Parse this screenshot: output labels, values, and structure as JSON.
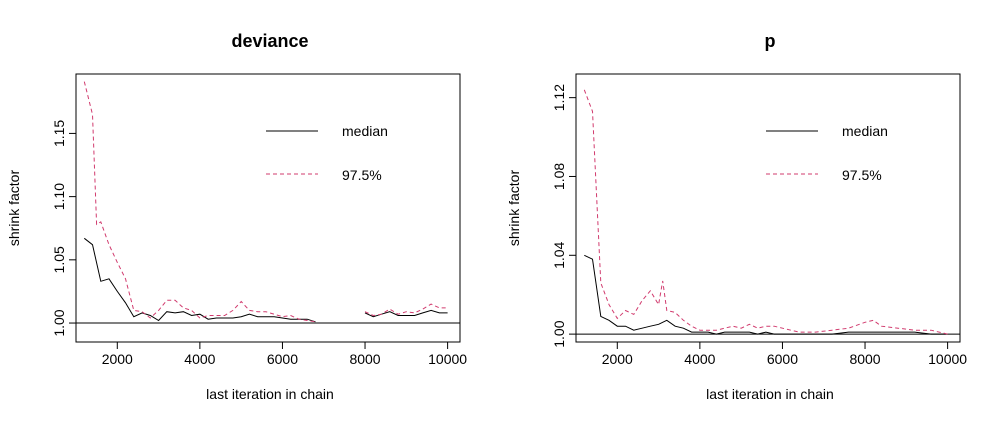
{
  "chart_data": [
    {
      "type": "line",
      "title": "deviance",
      "xlabel": "last iteration in chain",
      "ylabel": "shrink factor",
      "xlim": [
        1000,
        10300
      ],
      "ylim": [
        0.985,
        1.197
      ],
      "x_ticks": [
        2000,
        4000,
        6000,
        8000,
        10000
      ],
      "y_ticks": [
        1.0,
        1.05,
        1.1,
        1.15
      ],
      "x_tick_labels": [
        "2000",
        "4000",
        "6000",
        "8000",
        "10000"
      ],
      "y_tick_labels": [
        "1.00",
        "1.05",
        "1.10",
        "1.15"
      ],
      "reference_line": 1.0,
      "legend_placement": "top-right",
      "grid": false,
      "series": [
        {
          "name": "median",
          "color": "#000000",
          "dash": "solid",
          "x": [
            1200,
            1400,
            1600,
            1800,
            2000,
            2200,
            2400,
            2600,
            2800,
            3000,
            3200,
            3400,
            3600,
            3800,
            4000,
            4200,
            4400,
            4600,
            4800,
            5000,
            5200,
            5400,
            5600,
            5800,
            6000,
            6200,
            6400,
            6600,
            6800,
            null,
            8000,
            8200,
            8400,
            8600,
            8800,
            9000,
            9200,
            9400,
            9600,
            9800,
            10000
          ],
          "y": [
            1.067,
            1.062,
            1.033,
            1.035,
            1.025,
            1.016,
            1.005,
            1.008,
            1.006,
            1.002,
            1.009,
            1.008,
            1.009,
            1.006,
            1.007,
            1.003,
            1.004,
            1.004,
            1.004,
            1.005,
            1.007,
            1.005,
            1.005,
            1.005,
            1.004,
            1.003,
            1.003,
            1.003,
            1.001,
            null,
            1.008,
            1.005,
            1.007,
            1.009,
            1.006,
            1.006,
            1.006,
            1.008,
            1.01,
            1.008,
            1.008
          ]
        },
        {
          "name": "97.5%",
          "color": "#d13b6e",
          "dash": "dashed",
          "x": [
            1200,
            1300,
            1400,
            1500,
            1600,
            1800,
            2000,
            2200,
            2400,
            2600,
            2800,
            3000,
            3200,
            3400,
            3600,
            3800,
            4000,
            4200,
            4400,
            4600,
            4800,
            5000,
            5200,
            5400,
            5600,
            5800,
            6000,
            6200,
            6400,
            6600,
            6800,
            null,
            8000,
            8200,
            8400,
            8600,
            8800,
            9000,
            9200,
            9400,
            9600,
            9800,
            10000
          ],
          "y": [
            1.191,
            1.178,
            1.165,
            1.078,
            1.08,
            1.062,
            1.048,
            1.035,
            1.01,
            1.009,
            1.004,
            1.01,
            1.018,
            1.018,
            1.012,
            1.01,
            1.004,
            1.006,
            1.006,
            1.006,
            1.01,
            1.017,
            1.01,
            1.009,
            1.009,
            1.007,
            1.005,
            1.006,
            1.003,
            1.002,
            1.001,
            null,
            1.009,
            1.006,
            1.007,
            1.011,
            1.007,
            1.009,
            1.008,
            1.011,
            1.015,
            1.012,
            1.012
          ]
        }
      ]
    },
    {
      "type": "line",
      "title": "p",
      "xlabel": "last iteration in chain",
      "ylabel": "shrink factor",
      "xlim": [
        1000,
        10300
      ],
      "ylim": [
        0.996,
        1.132
      ],
      "x_ticks": [
        2000,
        4000,
        6000,
        8000,
        10000
      ],
      "y_ticks": [
        1.0,
        1.04,
        1.08,
        1.12
      ],
      "x_tick_labels": [
        "2000",
        "4000",
        "6000",
        "8000",
        "10000"
      ],
      "y_tick_labels": [
        "1.00",
        "1.04",
        "1.08",
        "1.12"
      ],
      "reference_line": 1.0,
      "legend_placement": "top-right",
      "grid": false,
      "series": [
        {
          "name": "median",
          "color": "#000000",
          "dash": "solid",
          "x": [
            1200,
            1400,
            1600,
            1800,
            2000,
            2200,
            2400,
            2600,
            2800,
            3000,
            3200,
            3400,
            3600,
            3800,
            4000,
            4200,
            4400,
            4600,
            4800,
            5000,
            5200,
            5400,
            5600,
            5800,
            6000,
            6400,
            6800,
            7200,
            7600,
            8000,
            8400,
            8800,
            9200,
            9600,
            10000
          ],
          "y": [
            1.04,
            1.038,
            1.009,
            1.007,
            1.004,
            1.004,
            1.002,
            1.003,
            1.004,
            1.005,
            1.007,
            1.004,
            1.003,
            1.001,
            1.001,
            1.001,
            1.0,
            1.001,
            1.001,
            1.001,
            1.001,
            1.0,
            1.001,
            1.0,
            1.0,
            1.0,
            1.0,
            1.0,
            1.001,
            1.001,
            1.001,
            1.001,
            1.001,
            1.0,
            1.0
          ]
        },
        {
          "name": "97.5%",
          "color": "#d13b6e",
          "dash": "dashed",
          "x": [
            1200,
            1400,
            1600,
            1800,
            2000,
            2200,
            2400,
            2600,
            2800,
            3000,
            3100,
            3200,
            3400,
            3600,
            3800,
            4000,
            4200,
            4400,
            4600,
            4800,
            5000,
            5200,
            5400,
            5600,
            5800,
            6000,
            6400,
            6800,
            7200,
            7600,
            8000,
            8200,
            8400,
            8800,
            9200,
            9600,
            10000
          ],
          "y": [
            1.124,
            1.113,
            1.026,
            1.015,
            1.008,
            1.012,
            1.01,
            1.017,
            1.022,
            1.015,
            1.027,
            1.012,
            1.011,
            1.007,
            1.004,
            1.002,
            1.002,
            1.002,
            1.003,
            1.004,
            1.003,
            1.005,
            1.003,
            1.004,
            1.004,
            1.003,
            1.001,
            1.001,
            1.002,
            1.003,
            1.006,
            1.007,
            1.004,
            1.003,
            1.002,
            1.002,
            1.0
          ]
        }
      ]
    }
  ]
}
